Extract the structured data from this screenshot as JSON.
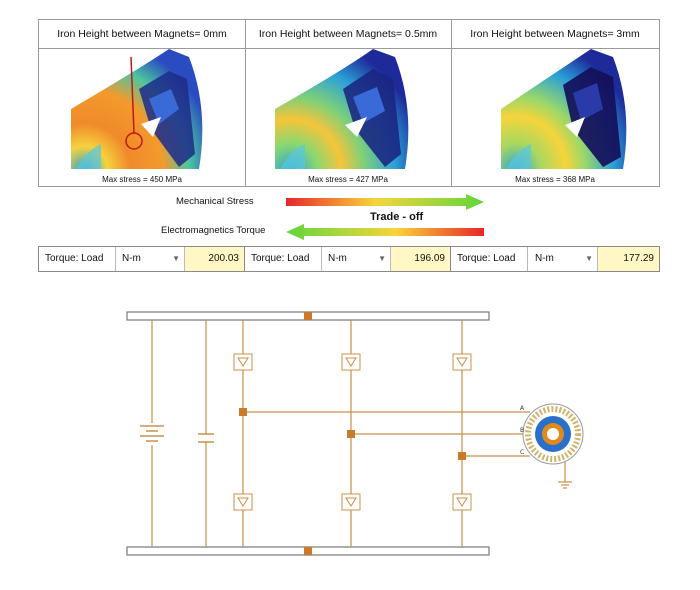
{
  "panels": [
    {
      "title": "Iron Height between Magnets= 0mm",
      "caption": "Max stress = 450 MPa"
    },
    {
      "title": "Iron Height between Magnets= 0.5mm",
      "caption": "Max stress = 427 MPa"
    },
    {
      "title": "Iron Height between Magnets= 3mm",
      "caption": "Max stress = 368 MPa"
    }
  ],
  "tradeoff": {
    "top_label": "Mechanical Stress",
    "middle_label": "Trade - off",
    "bottom_label": "Electromagnetics Torque"
  },
  "torque": [
    {
      "label": "Torque: Load",
      "unit": "N-m",
      "value": "200.03"
    },
    {
      "label": "Torque: Load",
      "unit": "N-m",
      "value": "196.09"
    },
    {
      "label": "Torque: Load",
      "unit": "N-m",
      "value": "177.29"
    }
  ],
  "circuit": {
    "phase_labels": [
      "A",
      "B",
      "C"
    ],
    "colors": {
      "wire": "#c8904a",
      "node": "#c97a2a",
      "rail": "#ffffff"
    }
  }
}
